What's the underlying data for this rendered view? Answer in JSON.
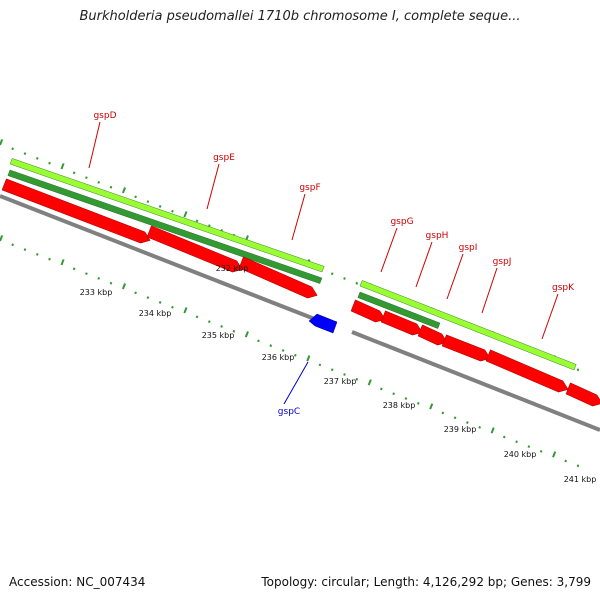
{
  "title": "Burkholderia pseudomallei 1710b chromosome I, complete seque...",
  "footer": {
    "accession": "Accession: NC_007434",
    "topology": "Topology: circular; Length: 4,126,292 bp; Genes: 3,799"
  },
  "colors": {
    "cds": "#ff0000",
    "cds_reverse": "#0000ff",
    "gene_light": "#99ff33",
    "gene_dark": "#339933",
    "backbone": "#808080",
    "tick": "#339933",
    "label_forward": "#cc0000",
    "label_reverse": "#0000cc"
  },
  "kbp_labels": [
    "232 kbp",
    "233 kbp",
    "234 kbp",
    "235 kbp",
    "236 kbp",
    "237 kbp",
    "238 kbp",
    "239 kbp",
    "240 kbp",
    "241 kbp"
  ],
  "genes": [
    {
      "name": "gspD",
      "strand": "forward"
    },
    {
      "name": "gspE",
      "strand": "forward"
    },
    {
      "name": "gspF",
      "strand": "forward"
    },
    {
      "name": "gspG",
      "strand": "forward"
    },
    {
      "name": "gspH",
      "strand": "forward"
    },
    {
      "name": "gspI",
      "strand": "forward"
    },
    {
      "name": "gspJ",
      "strand": "forward"
    },
    {
      "name": "gspK",
      "strand": "forward"
    },
    {
      "name": "gspC",
      "strand": "reverse"
    }
  ]
}
